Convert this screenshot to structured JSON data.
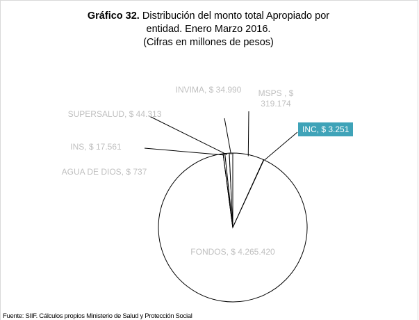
{
  "chart_data": {
    "type": "pie",
    "title_label": "Gráfico 32.",
    "title": "Distribución del monto total Apropiado por entidad. Enero Marzo 2016.",
    "subtitle": "(Cifras en millones de pesos)",
    "values": [
      319174,
      3251,
      4265420,
      737,
      17561,
      44313,
      34990
    ],
    "value_labels": [
      "MSPS , $ 319.174",
      "INC, $ 3.251",
      "FONDOS, $ 4.265.420",
      "AGUA DE DIOS, $ 737",
      "INS, $ 17.561",
      "SUPERSALUD, $ 44.313",
      "INVIMA, $ 34.990"
    ],
    "color": "#ffffff",
    "source": "Fuente: SIIF. Cálculos propios Ministerio de Salud y Protección Social"
  }
}
